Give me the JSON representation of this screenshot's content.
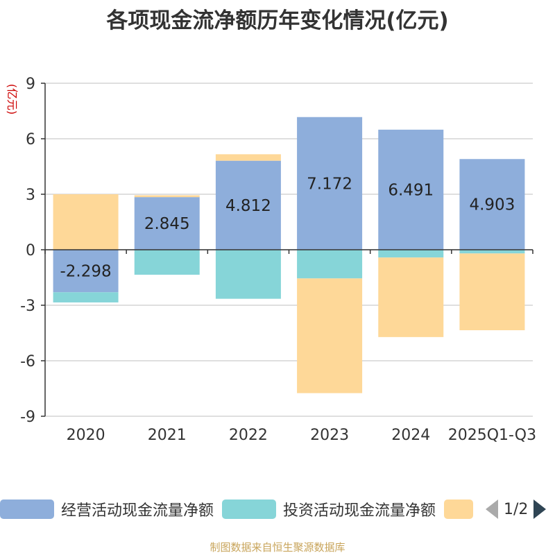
{
  "title": "各项现金流净额历年变化情况(亿元)",
  "source": "制图数据来自恒生聚源数据库",
  "pager": "1/2",
  "chart_data": {
    "type": "bar",
    "stacked": true,
    "unit_label": "(亿元)",
    "categories": [
      "2020",
      "2021",
      "2022",
      "2023",
      "2024",
      "2025Q1-Q3"
    ],
    "ylim": [
      -9,
      9
    ],
    "yticks": [
      9,
      6,
      3,
      0,
      -3,
      -6,
      -9
    ],
    "grid": true,
    "legend_position": "bottom",
    "series": [
      {
        "name": "经营活动现金流量净额",
        "color": "#8eaedb",
        "show_labels": true,
        "values": [
          -2.298,
          2.845,
          4.812,
          7.172,
          6.491,
          4.903
        ]
      },
      {
        "name": "投资活动现金流量净额",
        "color": "#86d5d8",
        "show_labels": false,
        "values": [
          -0.55,
          -1.35,
          -2.65,
          -1.55,
          -0.42,
          -0.2
        ]
      },
      {
        "name": "",
        "color": "#fed898",
        "show_labels": false,
        "values": [
          3.0,
          0.1,
          0.35,
          -6.2,
          -4.3,
          -4.15
        ]
      }
    ]
  }
}
